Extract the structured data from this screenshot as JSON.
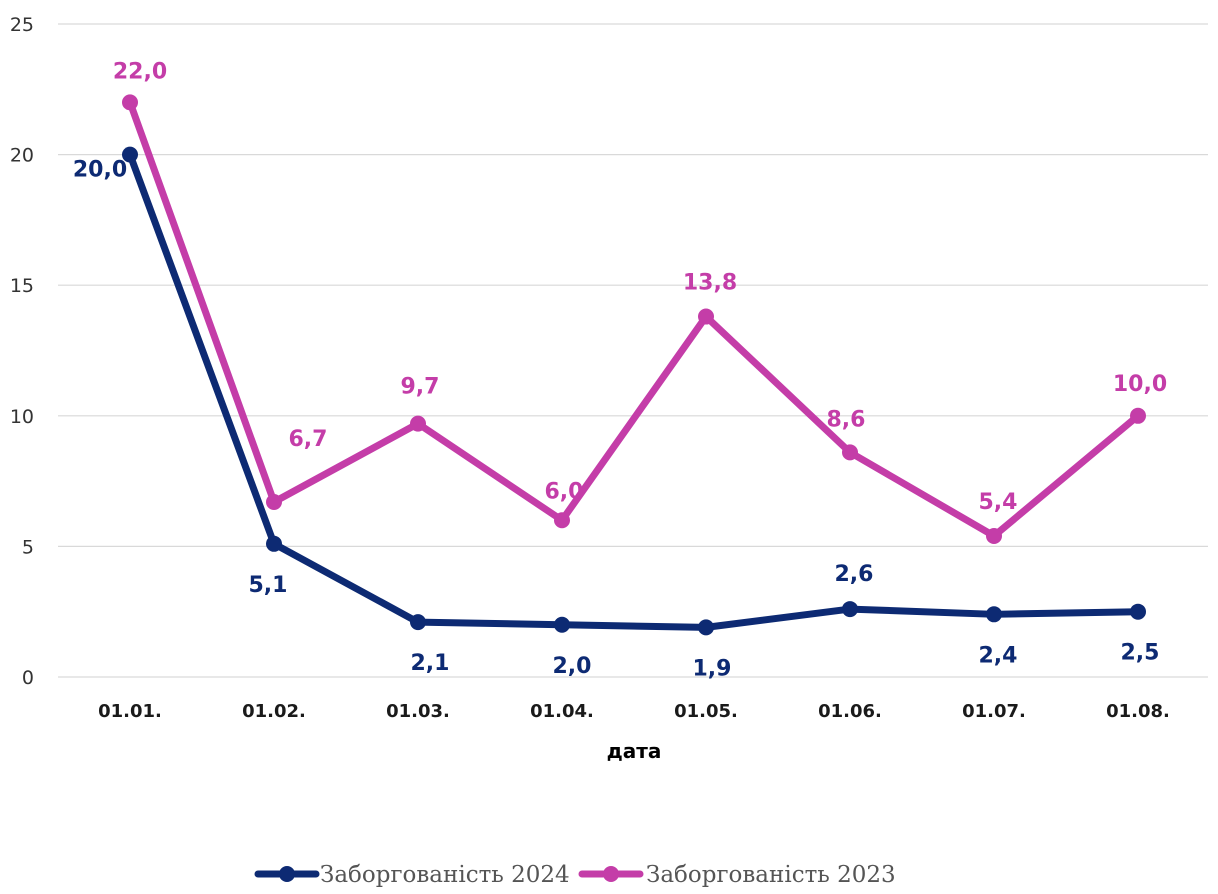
{
  "chart_data": {
    "type": "line",
    "categories": [
      "01.01.",
      "01.02.",
      "01.03.",
      "01.04.",
      "01.05.",
      "01.06.",
      "01.07.",
      "01.08."
    ],
    "series": [
      {
        "name": "Заборгованість 2024",
        "color": "#0d2a73",
        "values": [
          20.0,
          5.1,
          2.1,
          2.0,
          1.9,
          2.6,
          2.4,
          2.5
        ],
        "labels": [
          "20,0",
          "5,1",
          "2,1",
          "2,0",
          "1,9",
          "2,6",
          "2,4",
          "2,5"
        ]
      },
      {
        "name": "Заборгованість 2023",
        "color": "#c43da8",
        "values": [
          22.0,
          6.7,
          9.7,
          6.0,
          13.8,
          8.6,
          5.4,
          10.0
        ],
        "labels": [
          "22,0",
          "6,7",
          "9,7",
          "6,0",
          "13,8",
          "8,6",
          "5,4",
          "10,0"
        ]
      }
    ],
    "xlabel": "дата",
    "ylabel": "",
    "ylim": [
      0,
      25
    ],
    "yticks": [
      "0",
      "5",
      "10",
      "15",
      "20",
      "25"
    ],
    "grid": true,
    "legend": "bottom"
  }
}
